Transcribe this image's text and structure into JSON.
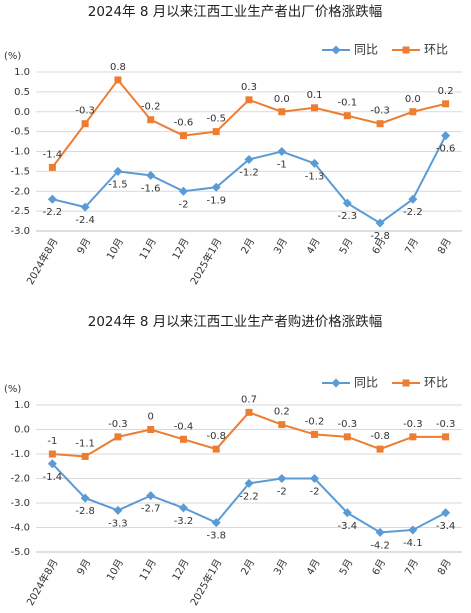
{
  "chart_data": [
    {
      "type": "line",
      "title": "2024年 8 月以来江西工业生产者出厂价格涨跌幅",
      "y_label": "(%)",
      "categories": [
        "2024年8月",
        "9月",
        "10月",
        "11月",
        "12月",
        "2025年1月",
        "2月",
        "3月",
        "4月",
        "5月",
        "6月",
        "7月",
        "8月"
      ],
      "series": [
        {
          "name": "同比",
          "color": "#5b9bd5",
          "marker": "diamond",
          "values": [
            -2.2,
            -2.4,
            -1.5,
            -1.6,
            -2,
            -1.9,
            -1.2,
            -1,
            -1.3,
            -2.3,
            -2.8,
            -2.2,
            -0.6
          ]
        },
        {
          "name": "环比",
          "color": "#ed7d31",
          "marker": "square",
          "values": [
            -1.4,
            -0.3,
            0.8,
            -0.2,
            -0.6,
            -0.5,
            0.3,
            0.0,
            0.1,
            -0.1,
            -0.3,
            0.0,
            0.2
          ],
          "value_labels": [
            "-1.4",
            "-0.3",
            "0.8",
            "-0.2",
            "-0.6",
            "-0.5",
            "0.3",
            "0.0",
            "0.1",
            "-0.1",
            "-0.3",
            "0.0",
            "0.2"
          ]
        }
      ],
      "ylim": [
        -3,
        1
      ],
      "yticks": [
        {
          "value": 1,
          "label": "1.0"
        },
        0.5,
        {
          "value": 0,
          "label": "0.0"
        },
        -0.5,
        {
          "value": -1,
          "label": "-1.0"
        },
        -1.5,
        {
          "value": -2,
          "label": "-2.0"
        },
        -2.5,
        {
          "value": -3,
          "label": "-3.0"
        }
      ],
      "grid": true,
      "legend": "top-right"
    },
    {
      "type": "line",
      "title": "2024年 8 月以来江西工业生产者购进价格涨跌幅",
      "y_label": "(%)",
      "categories": [
        "2024年8月",
        "9月",
        "10月",
        "11月",
        "12月",
        "2025年1月",
        "2月",
        "3月",
        "4月",
        "5月",
        "6月",
        "7月",
        "8月"
      ],
      "series": [
        {
          "name": "同比",
          "color": "#5b9bd5",
          "marker": "diamond",
          "values": [
            -1.4,
            -2.8,
            -3.3,
            -2.7,
            -3.2,
            -3.8,
            -2.2,
            -2,
            -2,
            -3.4,
            -4.2,
            -4.1,
            -3.4
          ]
        },
        {
          "name": "环比",
          "color": "#ed7d31",
          "marker": "square",
          "values": [
            -1,
            -1.1,
            -0.3,
            0,
            -0.4,
            -0.8,
            0.7,
            0.2,
            -0.2,
            -0.3,
            -0.8,
            -0.3,
            -0.3
          ]
        }
      ],
      "ylim": [
        -5,
        1
      ],
      "yticks": [
        {
          "value": 1,
          "label": "1.0"
        },
        {
          "value": 0,
          "label": "0.0"
        },
        {
          "value": -1,
          "label": "-1.0"
        },
        {
          "value": -2,
          "label": "-2.0"
        },
        {
          "value": -3,
          "label": "-3.0"
        },
        {
          "value": -4,
          "label": "-4.0"
        },
        {
          "value": -5,
          "label": "-5.0"
        }
      ],
      "grid": true,
      "legend": "top-right"
    }
  ]
}
